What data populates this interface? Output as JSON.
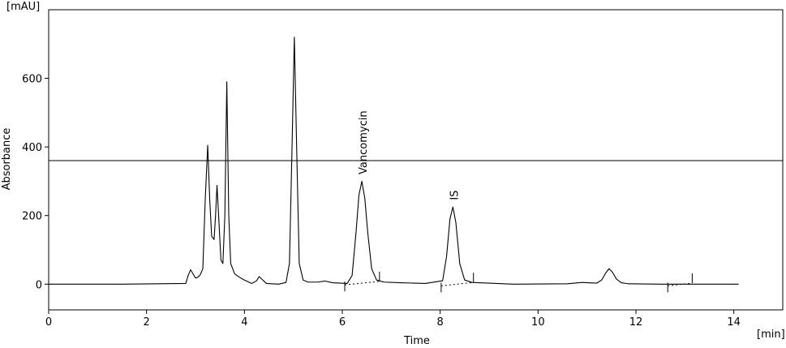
{
  "chart_data": {
    "type": "line",
    "x_label": "Time",
    "x_unit": "[min]",
    "y_label": "Absorbance",
    "y_unit": "[mAU]",
    "xlim": [
      0,
      15
    ],
    "xticks": [
      0,
      2,
      4,
      6,
      8,
      10,
      12,
      14
    ],
    "ylim": [
      -75,
      800
    ],
    "yticks": [
      0,
      200,
      400,
      600
    ],
    "reference_line": 360,
    "x": [
      0,
      1.5,
      2.8,
      2.85,
      2.9,
      2.95,
      3.0,
      3.05,
      3.1,
      3.15,
      3.2,
      3.25,
      3.29,
      3.33,
      3.38,
      3.41,
      3.44,
      3.48,
      3.52,
      3.56,
      3.6,
      3.64,
      3.68,
      3.72,
      3.8,
      3.9,
      4.0,
      4.15,
      4.25,
      4.3,
      4.36,
      4.45,
      4.7,
      4.85,
      4.92,
      4.97,
      5.02,
      5.07,
      5.12,
      5.2,
      5.3,
      5.5,
      5.65,
      5.8,
      6.1,
      6.2,
      6.28,
      6.34,
      6.4,
      6.46,
      6.52,
      6.6,
      6.7,
      6.85,
      7.2,
      7.7,
      8.05,
      8.13,
      8.2,
      8.26,
      8.32,
      8.4,
      8.5,
      8.65,
      9.5,
      10.6,
      10.9,
      11.2,
      11.3,
      11.38,
      11.45,
      11.52,
      11.6,
      11.7,
      11.85,
      12.5,
      14.1
    ],
    "series": [
      {
        "color": "#000000",
        "values": [
          0,
          0,
          2,
          25,
          42,
          30,
          18,
          20,
          28,
          45,
          250,
          405,
          250,
          140,
          130,
          200,
          288,
          180,
          70,
          60,
          200,
          590,
          200,
          60,
          30,
          20,
          12,
          2,
          10,
          22,
          14,
          2,
          0,
          5,
          60,
          380,
          720,
          380,
          60,
          12,
          6,
          6,
          9,
          4,
          2,
          25,
          150,
          260,
          300,
          250,
          150,
          45,
          12,
          6,
          4,
          2,
          10,
          80,
          190,
          225,
          180,
          60,
          12,
          5,
          0,
          1,
          5,
          3,
          12,
          32,
          45,
          35,
          15,
          4,
          1,
          0,
          0
        ]
      }
    ],
    "annotations": [
      {
        "text": "Vancomycin",
        "x": 6.4,
        "y": 320
      },
      {
        "text": "IS",
        "x": 8.26,
        "y": 245
      }
    ],
    "integration_baselines": [
      {
        "x": [
          6.05,
          6.76
        ],
        "y": [
          -2,
          8
        ]
      },
      {
        "x": [
          8.02,
          8.68
        ],
        "y": [
          -5,
          5
        ]
      },
      {
        "x": [
          12.65,
          13.15
        ],
        "y": [
          -5,
          3
        ]
      }
    ]
  }
}
